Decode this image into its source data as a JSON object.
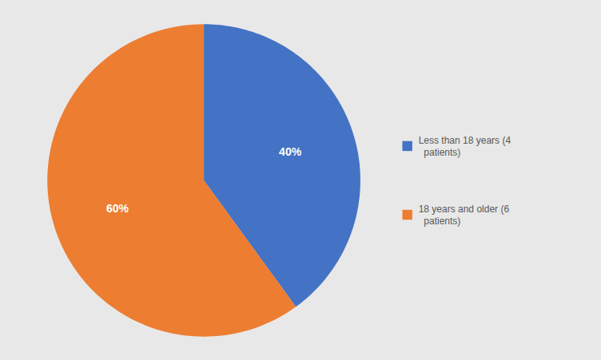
{
  "chart_data": {
    "type": "pie",
    "categories": [
      "Less than 18 years (4\n  patients)",
      "18 years and older (6\n  patients)"
    ],
    "values": [
      40,
      60
    ],
    "value_labels": [
      "40%",
      "60%"
    ],
    "colors": [
      "#4472C4",
      "#ED7D31"
    ],
    "data_labels": true,
    "legend": "right"
  }
}
